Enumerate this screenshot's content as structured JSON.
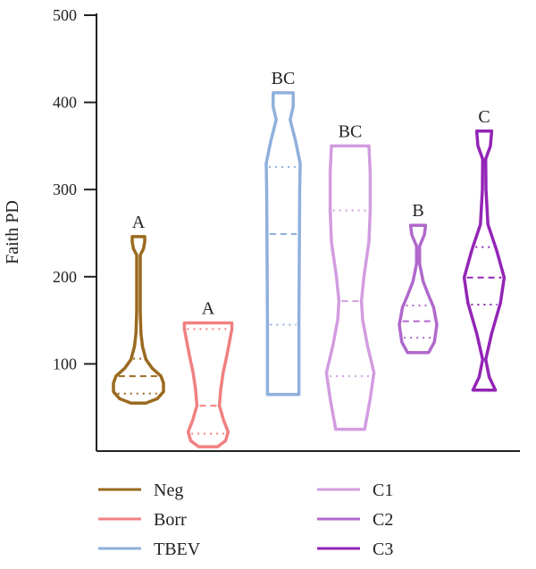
{
  "chart_data": {
    "type": "violin",
    "ylabel": "Faith PD",
    "xlabel": "",
    "ylim": [
      0,
      500
    ],
    "yticks": [
      100,
      200,
      300,
      400,
      500
    ],
    "grid": false,
    "legend_position": "bottom",
    "series": [
      {
        "name": "Neg",
        "color": "#9a6a1f",
        "letter": "A",
        "min": 55,
        "max": 246,
        "q1": 66,
        "median": 86,
        "q3": 106,
        "profile": [
          [
            55,
            0.3
          ],
          [
            60,
            0.75
          ],
          [
            68,
            1.0
          ],
          [
            78,
            1.0
          ],
          [
            86,
            0.9
          ],
          [
            95,
            0.55
          ],
          [
            105,
            0.3
          ],
          [
            120,
            0.16
          ],
          [
            135,
            0.1
          ],
          [
            160,
            0.07
          ],
          [
            200,
            0.07
          ],
          [
            225,
            0.07
          ],
          [
            232,
            0.2
          ],
          [
            240,
            0.25
          ],
          [
            246,
            0.25
          ]
        ]
      },
      {
        "name": "Borr",
        "color": "#f08080",
        "letter": "A",
        "min": 5,
        "max": 147,
        "q1": 20,
        "median": 52,
        "q3": 140,
        "profile": [
          [
            5,
            0.38
          ],
          [
            12,
            0.7
          ],
          [
            22,
            0.8
          ],
          [
            35,
            0.62
          ],
          [
            52,
            0.45
          ],
          [
            70,
            0.5
          ],
          [
            90,
            0.6
          ],
          [
            110,
            0.75
          ],
          [
            125,
            0.85
          ],
          [
            140,
            0.95
          ],
          [
            147,
            0.95
          ]
        ]
      },
      {
        "name": "TBEV",
        "color": "#8fb0dc",
        "letter": "BC",
        "min": 65,
        "max": 411,
        "q1": 145,
        "median": 249,
        "q3": 326,
        "profile": [
          [
            65,
            0.63
          ],
          [
            100,
            0.63
          ],
          [
            145,
            0.63
          ],
          [
            200,
            0.64
          ],
          [
            249,
            0.65
          ],
          [
            300,
            0.66
          ],
          [
            330,
            0.68
          ],
          [
            355,
            0.5
          ],
          [
            380,
            0.28
          ],
          [
            395,
            0.4
          ],
          [
            411,
            0.4
          ]
        ]
      },
      {
        "name": "C1",
        "color": "#d29ce0",
        "letter": "BC",
        "min": 25,
        "max": 350,
        "q1": 86,
        "median": 172,
        "q3": 276,
        "profile": [
          [
            25,
            0.58
          ],
          [
            60,
            0.8
          ],
          [
            90,
            0.95
          ],
          [
            120,
            0.7
          ],
          [
            150,
            0.5
          ],
          [
            172,
            0.45
          ],
          [
            200,
            0.55
          ],
          [
            240,
            0.75
          ],
          [
            276,
            0.8
          ],
          [
            320,
            0.8
          ],
          [
            350,
            0.75
          ]
        ]
      },
      {
        "name": "C2",
        "color": "#b068cc",
        "letter": "B",
        "min": 113,
        "max": 259,
        "q1": 130,
        "median": 149,
        "q3": 167,
        "profile": [
          [
            113,
            0.42
          ],
          [
            125,
            0.65
          ],
          [
            145,
            0.75
          ],
          [
            165,
            0.62
          ],
          [
            180,
            0.4
          ],
          [
            195,
            0.2
          ],
          [
            215,
            0.06
          ],
          [
            235,
            0.06
          ],
          [
            248,
            0.25
          ],
          [
            259,
            0.3
          ]
        ]
      },
      {
        "name": "C3",
        "color": "#9325b6",
        "letter": "C",
        "min": 70,
        "max": 367,
        "q1": 168,
        "median": 199,
        "q3": 234,
        "profile": [
          [
            70,
            0.45
          ],
          [
            85,
            0.2
          ],
          [
            105,
            0.06
          ],
          [
            135,
            0.3
          ],
          [
            170,
            0.65
          ],
          [
            199,
            0.8
          ],
          [
            230,
            0.5
          ],
          [
            260,
            0.15
          ],
          [
            300,
            0.07
          ],
          [
            335,
            0.06
          ],
          [
            350,
            0.25
          ],
          [
            367,
            0.3
          ]
        ]
      }
    ]
  }
}
